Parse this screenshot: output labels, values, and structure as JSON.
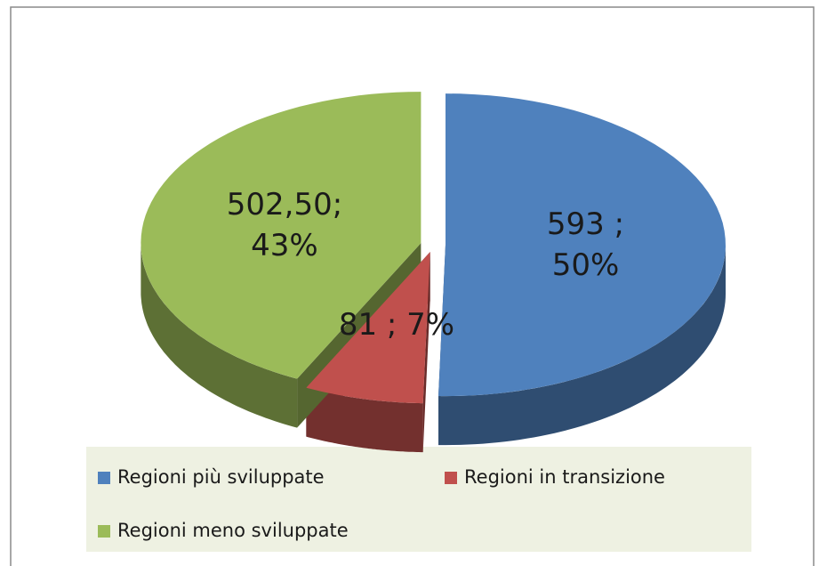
{
  "chart_data": {
    "type": "pie3d",
    "categories": [
      "Regioni più sviluppate",
      "Regioni in transizione",
      "Regioni meno sviluppate"
    ],
    "values": [
      593,
      81,
      502.5
    ],
    "value_labels": [
      "593 ; 50%",
      "81 ; 7%",
      "502,50; 43%"
    ],
    "colors": [
      "#4f81bd",
      "#c0504d",
      "#9bbb59"
    ],
    "legend": "bottom"
  }
}
